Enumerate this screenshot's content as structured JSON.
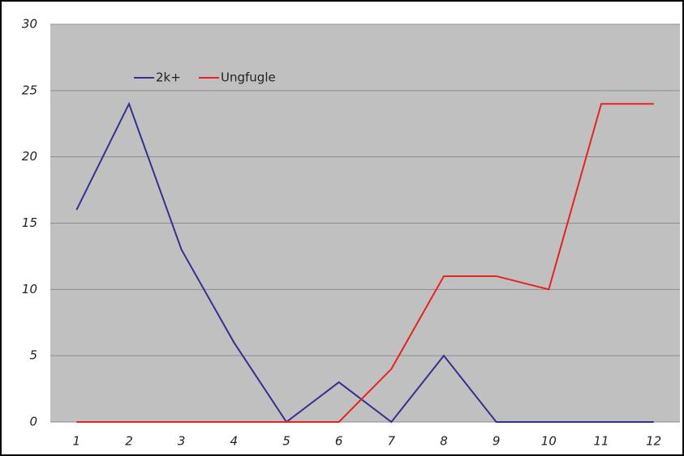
{
  "chart_data": {
    "type": "line",
    "categories": [
      "1",
      "2",
      "3",
      "4",
      "5",
      "6",
      "7",
      "8",
      "9",
      "10",
      "11",
      "12"
    ],
    "series": [
      {
        "name": "2k+",
        "color": "#35308f",
        "values": [
          16,
          24,
          13,
          6,
          0,
          3,
          0,
          5,
          0,
          0,
          0,
          0
        ]
      },
      {
        "name": "Ungfugle",
        "color": "#e8221e",
        "values": [
          0,
          0,
          0,
          0,
          0,
          0,
          4,
          11,
          11,
          10,
          24,
          24
        ]
      }
    ],
    "ylim": [
      0,
      30
    ],
    "yticks": [
      0,
      5,
      10,
      15,
      20,
      25,
      30
    ],
    "grid": true,
    "legend": "top-left"
  }
}
